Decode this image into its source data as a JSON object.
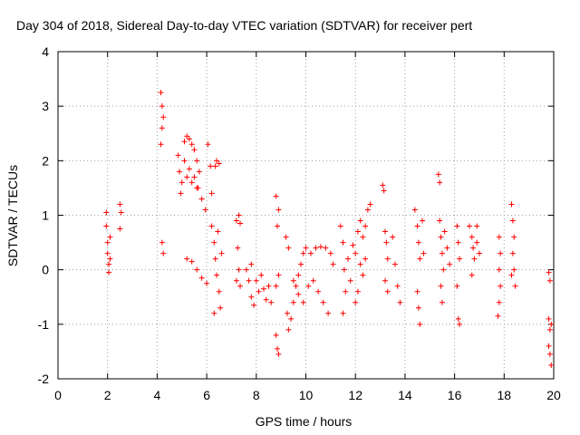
{
  "chart_data": {
    "type": "scatter",
    "title": "Day 304 of 2018, Sidereal Day-to-day VTEC variation (SDTVAR) for receiver pert",
    "xlabel": "GPS time / hours",
    "ylabel": "SDTVAR / TECUs",
    "xlim": [
      0,
      20
    ],
    "ylim": [
      -2,
      4
    ],
    "xticks": [
      "0",
      "2",
      "4",
      "6",
      "8",
      "10",
      "12",
      "14",
      "16",
      "18",
      "20"
    ],
    "yticks": [
      "-2",
      "-1",
      "0",
      "1",
      "2",
      "3",
      "4"
    ],
    "grid": true,
    "marker": "plus",
    "series_color": "#ff0000",
    "series": [
      {
        "name": "SDTVAR",
        "points": [
          [
            1.95,
            1.05
          ],
          [
            1.95,
            0.8
          ],
          [
            2.0,
            0.5
          ],
          [
            2.0,
            0.3
          ],
          [
            2.05,
            0.1
          ],
          [
            2.05,
            -0.05
          ],
          [
            2.1,
            0.6
          ],
          [
            2.1,
            0.2
          ],
          [
            2.5,
            1.2
          ],
          [
            2.5,
            0.75
          ],
          [
            2.55,
            1.05
          ],
          [
            4.15,
            3.25
          ],
          [
            4.2,
            3.0
          ],
          [
            4.2,
            2.6
          ],
          [
            4.15,
            2.3
          ],
          [
            4.25,
            2.8
          ],
          [
            4.2,
            0.5
          ],
          [
            4.25,
            0.3
          ],
          [
            4.85,
            2.1
          ],
          [
            4.9,
            1.8
          ],
          [
            4.95,
            1.4
          ],
          [
            5.1,
            2.35
          ],
          [
            5.2,
            2.45
          ],
          [
            5.3,
            2.4
          ],
          [
            5.4,
            2.3
          ],
          [
            5.5,
            2.2
          ],
          [
            5.6,
            2.0
          ],
          [
            5.7,
            1.8
          ],
          [
            5.0,
            1.6
          ],
          [
            5.2,
            1.7
          ],
          [
            5.4,
            1.6
          ],
          [
            5.6,
            1.5
          ],
          [
            5.8,
            1.3
          ],
          [
            5.95,
            1.1
          ],
          [
            5.1,
            2.0
          ],
          [
            5.3,
            1.85
          ],
          [
            5.5,
            1.7
          ],
          [
            5.65,
            1.5
          ],
          [
            5.2,
            0.2
          ],
          [
            5.4,
            0.15
          ],
          [
            5.6,
            0.0
          ],
          [
            5.8,
            -0.15
          ],
          [
            6.0,
            -0.25
          ],
          [
            6.05,
            2.3
          ],
          [
            6.15,
            1.9
          ],
          [
            6.2,
            1.4
          ],
          [
            6.35,
            1.9
          ],
          [
            6.4,
            2.0
          ],
          [
            6.5,
            1.95
          ],
          [
            6.2,
            0.8
          ],
          [
            6.3,
            0.5
          ],
          [
            6.35,
            0.2
          ],
          [
            6.4,
            -0.1
          ],
          [
            6.5,
            -0.4
          ],
          [
            6.55,
            -0.7
          ],
          [
            6.3,
            -0.8
          ],
          [
            6.45,
            0.7
          ],
          [
            6.6,
            0.3
          ],
          [
            7.2,
            0.9
          ],
          [
            7.3,
            1.0
          ],
          [
            7.35,
            0.85
          ],
          [
            7.25,
            0.4
          ],
          [
            7.3,
            0.0
          ],
          [
            7.35,
            -0.3
          ],
          [
            7.2,
            -0.2
          ],
          [
            7.6,
            0.0
          ],
          [
            7.7,
            -0.2
          ],
          [
            7.8,
            -0.5
          ],
          [
            7.9,
            -0.65
          ],
          [
            7.8,
            0.1
          ],
          [
            8.0,
            -0.2
          ],
          [
            8.1,
            -0.4
          ],
          [
            8.2,
            -0.1
          ],
          [
            8.3,
            -0.35
          ],
          [
            8.4,
            -0.55
          ],
          [
            8.5,
            -0.3
          ],
          [
            8.6,
            -0.6
          ],
          [
            8.8,
            1.35
          ],
          [
            8.9,
            1.1
          ],
          [
            8.85,
            0.8
          ],
          [
            8.8,
            -1.2
          ],
          [
            8.85,
            -1.45
          ],
          [
            8.9,
            -1.55
          ],
          [
            8.8,
            -0.3
          ],
          [
            8.9,
            -0.1
          ],
          [
            9.2,
            0.6
          ],
          [
            9.3,
            0.4
          ],
          [
            9.25,
            -0.8
          ],
          [
            9.3,
            -1.1
          ],
          [
            9.4,
            -0.9
          ],
          [
            9.5,
            -0.6
          ],
          [
            9.6,
            -0.3
          ],
          [
            9.7,
            -0.1
          ],
          [
            9.8,
            0.1
          ],
          [
            9.9,
            0.3
          ],
          [
            10.0,
            0.4
          ],
          [
            9.5,
            -0.2
          ],
          [
            9.7,
            -0.45
          ],
          [
            9.9,
            -0.6
          ],
          [
            10.1,
            -0.3
          ],
          [
            10.3,
            -0.2
          ],
          [
            10.5,
            -0.4
          ],
          [
            10.7,
            -0.6
          ],
          [
            10.9,
            -0.8
          ],
          [
            10.2,
            0.3
          ],
          [
            10.4,
            0.4
          ],
          [
            10.6,
            0.42
          ],
          [
            10.8,
            0.4
          ],
          [
            11.0,
            0.3
          ],
          [
            11.1,
            0.1
          ],
          [
            11.4,
            0.8
          ],
          [
            11.5,
            0.5
          ],
          [
            11.55,
            0.0
          ],
          [
            11.6,
            -0.4
          ],
          [
            11.5,
            -0.8
          ],
          [
            11.7,
            0.2
          ],
          [
            11.8,
            -0.2
          ],
          [
            11.9,
            0.45
          ],
          [
            12.0,
            0.3
          ],
          [
            12.1,
            0.7
          ],
          [
            12.2,
            0.9
          ],
          [
            12.3,
            0.6
          ],
          [
            12.4,
            0.8
          ],
          [
            12.5,
            1.1
          ],
          [
            12.6,
            1.2
          ],
          [
            12.2,
            0.1
          ],
          [
            12.3,
            -0.1
          ],
          [
            12.4,
            0.2
          ],
          [
            12.1,
            -0.4
          ],
          [
            12.0,
            -0.6
          ],
          [
            13.1,
            1.55
          ],
          [
            13.15,
            1.45
          ],
          [
            13.2,
            0.7
          ],
          [
            13.25,
            0.5
          ],
          [
            13.3,
            0.2
          ],
          [
            13.2,
            -0.2
          ],
          [
            13.3,
            -0.4
          ],
          [
            13.5,
            0.6
          ],
          [
            13.6,
            0.1
          ],
          [
            13.7,
            -0.3
          ],
          [
            13.8,
            -0.6
          ],
          [
            14.4,
            1.1
          ],
          [
            14.5,
            0.8
          ],
          [
            14.55,
            0.5
          ],
          [
            14.6,
            0.2
          ],
          [
            14.5,
            -0.4
          ],
          [
            14.55,
            -0.7
          ],
          [
            14.6,
            -1.0
          ],
          [
            14.7,
            0.9
          ],
          [
            14.75,
            0.3
          ],
          [
            15.35,
            1.75
          ],
          [
            15.4,
            1.6
          ],
          [
            15.4,
            0.9
          ],
          [
            15.45,
            0.6
          ],
          [
            15.5,
            0.3
          ],
          [
            15.55,
            0.0
          ],
          [
            15.45,
            -0.3
          ],
          [
            15.5,
            -0.6
          ],
          [
            15.6,
            0.7
          ],
          [
            15.7,
            0.4
          ],
          [
            15.8,
            0.1
          ],
          [
            16.1,
            0.8
          ],
          [
            16.15,
            0.5
          ],
          [
            16.2,
            0.2
          ],
          [
            16.1,
            -0.3
          ],
          [
            16.15,
            -0.9
          ],
          [
            16.2,
            -1.0
          ],
          [
            16.6,
            0.8
          ],
          [
            16.7,
            0.6
          ],
          [
            16.75,
            0.4
          ],
          [
            16.8,
            0.2
          ],
          [
            16.9,
            0.5
          ],
          [
            17.0,
            0.3
          ],
          [
            16.7,
            -0.1
          ],
          [
            16.9,
            0.8
          ],
          [
            17.8,
            0.6
          ],
          [
            17.85,
            0.3
          ],
          [
            17.8,
            0.0
          ],
          [
            17.85,
            -0.3
          ],
          [
            17.8,
            -0.6
          ],
          [
            17.75,
            -0.85
          ],
          [
            18.3,
            1.2
          ],
          [
            18.35,
            0.9
          ],
          [
            18.4,
            0.6
          ],
          [
            18.35,
            0.3
          ],
          [
            18.4,
            0.0
          ],
          [
            18.45,
            -0.3
          ],
          [
            18.3,
            -0.1
          ],
          [
            19.8,
            -0.05
          ],
          [
            19.85,
            -0.2
          ],
          [
            19.8,
            -0.9
          ],
          [
            19.85,
            -1.1
          ],
          [
            19.8,
            -1.4
          ],
          [
            19.85,
            -1.55
          ],
          [
            19.9,
            -1.75
          ],
          [
            19.9,
            -1.0
          ]
        ]
      }
    ]
  }
}
